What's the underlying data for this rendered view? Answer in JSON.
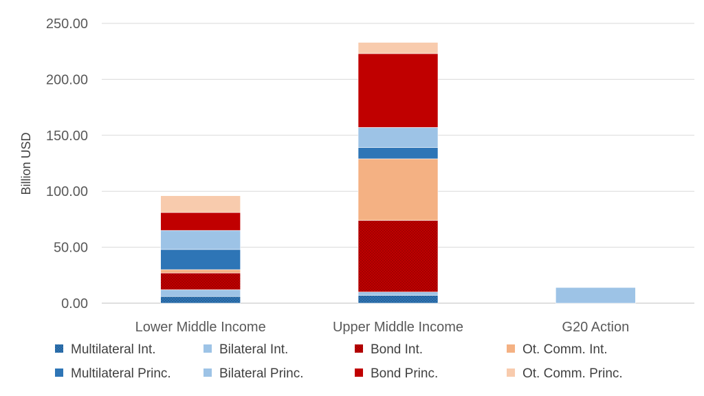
{
  "chart_data": {
    "type": "bar",
    "stacked": true,
    "title": "",
    "xlabel": "",
    "ylabel": "Billion USD",
    "ylim": [
      0,
      250
    ],
    "yticks": [
      "0.00",
      "50.00",
      "100.00",
      "150.00",
      "200.00",
      "250.00"
    ],
    "grid": true,
    "legend_position": "bottom",
    "categories": [
      "Lower Middle Income",
      "Upper Middle Income",
      "G20 Action"
    ],
    "series": [
      {
        "name": "Multilateral  Int.",
        "color": "#2e75b6",
        "pattern": "dots",
        "values": [
          6,
          7,
          0
        ]
      },
      {
        "name": "Bilateral Int.",
        "color": "#9dc3e6",
        "pattern": "none",
        "values": [
          6,
          3,
          14
        ]
      },
      {
        "name": "Bond Int.",
        "color": "#c00000",
        "pattern": "dots",
        "values": [
          15,
          64,
          0
        ]
      },
      {
        "name": "Ot. Comm. Int.",
        "color": "#f4b183",
        "pattern": "none",
        "values": [
          3,
          55,
          0
        ]
      },
      {
        "name": "Multilateral  Princ.",
        "color": "#2e75b6",
        "pattern": "none",
        "values": [
          18,
          10,
          0
        ]
      },
      {
        "name": "Bilateral Princ.",
        "color": "#9dc3e6",
        "pattern": "none",
        "values": [
          17,
          18,
          0
        ]
      },
      {
        "name": "Bond Princ.",
        "color": "#c00000",
        "pattern": "none",
        "values": [
          16,
          66,
          0
        ]
      },
      {
        "name": "Ot. Comm. Princ.",
        "color": "#f8cbad",
        "pattern": "none",
        "values": [
          15,
          10,
          0
        ]
      }
    ]
  }
}
